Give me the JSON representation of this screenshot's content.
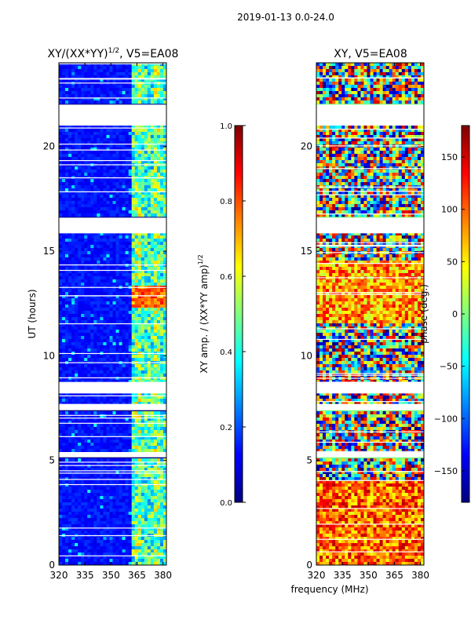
{
  "figure_title": "2019-01-13 0.0-24.0",
  "chart_data": [
    {
      "type": "heatmap",
      "title_main": "XY/(XX*YY)",
      "title_sup": "1/2",
      "title_suffix": ", V5=EA08",
      "xlabel": "",
      "ylabel": "UT (hours)",
      "xlim": [
        320,
        382
      ],
      "ylim": [
        0,
        24
      ],
      "xticks": [
        320,
        335,
        350,
        365,
        380
      ],
      "yticks": [
        0,
        5,
        10,
        15,
        20
      ],
      "colorbar": {
        "label_main": "XY amp. / (XX*YY amp)",
        "label_sup": "1/2",
        "range": [
          0.0,
          1.0
        ],
        "ticks": [
          "0.0",
          "0.2",
          "0.4",
          "0.6",
          "0.8",
          "1.0"
        ]
      },
      "blank_hour_ranges": [
        [
          21.0,
          22.0
        ],
        [
          15.85,
          16.6
        ],
        [
          8.2,
          8.75
        ],
        [
          7.4,
          7.7
        ],
        [
          5.15,
          5.4
        ]
      ]
    },
    {
      "type": "heatmap",
      "title_main": "XY, V5=EA08",
      "xlabel": "frequency (MHz)",
      "ylabel": "",
      "xlim": [
        320,
        382
      ],
      "ylim": [
        0,
        24
      ],
      "xticks": [
        320,
        335,
        350,
        365,
        380
      ],
      "yticks": [
        0,
        5,
        10,
        15,
        20
      ],
      "colorbar": {
        "label_main": "phase (deg.)",
        "range": [
          -180,
          180
        ],
        "ticks": [
          "150",
          "100",
          "50",
          "0",
          "−50",
          "−100",
          "−150"
        ]
      },
      "blank_hour_ranges": [
        [
          21.0,
          22.0
        ],
        [
          15.85,
          16.6
        ],
        [
          8.2,
          8.75
        ],
        [
          7.4,
          7.7
        ],
        [
          5.15,
          5.4
        ]
      ]
    }
  ]
}
